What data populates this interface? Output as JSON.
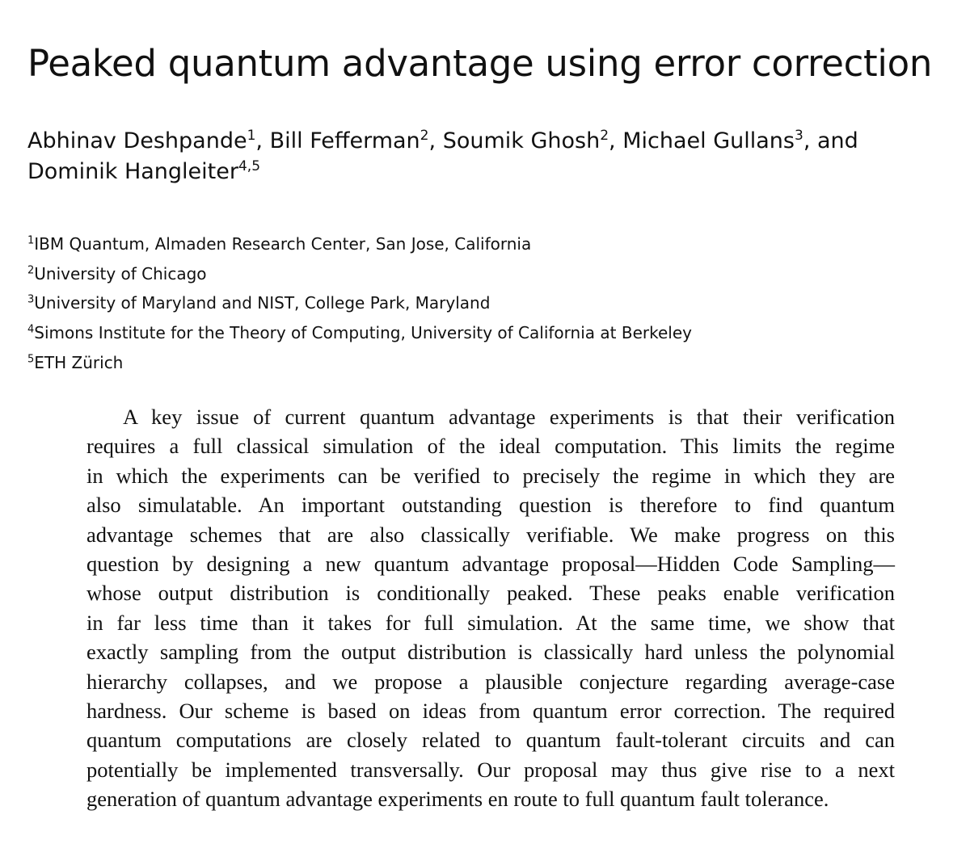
{
  "title": "Peaked quantum advantage using error correction",
  "authors": [
    {
      "name": "Abhinav Deshpande",
      "affiliations": "1",
      "suffix": ","
    },
    {
      "name": "Bill Fefferman",
      "affiliations": "2",
      "suffix": ","
    },
    {
      "name": "Soumik Ghosh",
      "affiliations": "2",
      "suffix": ","
    },
    {
      "name": "Michael Gullans",
      "affiliations": "3",
      "suffix": ", and"
    },
    {
      "name": "Dominik Hangleiter",
      "affiliations": "4,5",
      "suffix": ""
    }
  ],
  "affiliations": [
    {
      "number": "1",
      "text": "IBM Quantum, Almaden Research Center, San Jose, California"
    },
    {
      "number": "2",
      "text": "University of Chicago"
    },
    {
      "number": "3",
      "text": "University of Maryland and NIST, College Park, Maryland"
    },
    {
      "number": "4",
      "text": "Simons Institute for the Theory of Computing, University of California at Berkeley"
    },
    {
      "number": "5",
      "text": "ETH Zürich"
    }
  ],
  "abstract": {
    "lines": [
      "A key issue of current quantum advantage experiments is that their verification",
      "requires a full classical simulation of the ideal computation. This limits the regime",
      "in which the experiments can be verified to precisely the regime in which they are",
      "also simulatable. An important outstanding question is therefore to find quantum",
      "advantage schemes that are also classically verifiable. We make progress on this",
      "question by designing a new quantum advantage proposal—Hidden Code Sampling—",
      "whose output distribution is conditionally peaked. These peaks enable verification",
      "in far less time than it takes for full simulation. At the same time, we show that",
      "exactly sampling from the output distribution is classically hard unless the polynomial",
      "hierarchy collapses, and we propose a plausible conjecture regarding average-case",
      "hardness. Our scheme is based on ideas from quantum error correction. The required",
      "quantum computations are closely related to quantum fault-tolerant circuits and can",
      "potentially be implemented transversally. Our proposal may thus give rise to a next",
      "generation of quantum advantage experiments en route to full quantum fault tolerance."
    ]
  }
}
